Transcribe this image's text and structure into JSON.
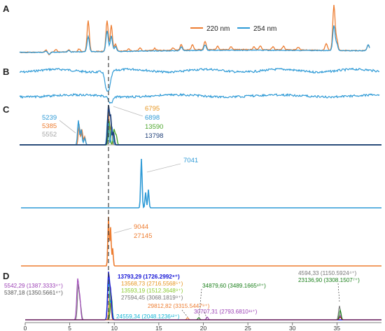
{
  "colors": {
    "orange": "#ED7D31",
    "blue": "#2E9AD6",
    "navy": "#1F3F78",
    "gray": "#A6A6A6",
    "green": "#4EA72E",
    "darkgreen": "#1A7F1A",
    "purple": "#9B3FB5",
    "brightblue": "#1414D6",
    "lime": "#8ACB2E",
    "cyan": "#12B5D6",
    "darkred": "#8B1A1A"
  },
  "chart_data": {
    "type": "line",
    "panels": {
      "A": {
        "label": "A",
        "legend": [
          {
            "name": "220 nm",
            "color": "#ED7D31"
          },
          {
            "name": "254 nm",
            "color": "#2E9AD6"
          }
        ]
      },
      "B": {
        "label": "B"
      },
      "C": {
        "label": "C",
        "group1_left": [
          {
            "text": "5239",
            "color": "#2E9AD6"
          },
          {
            "text": "5385",
            "color": "#ED7D31"
          },
          {
            "text": "5552",
            "color": "#A6A6A6"
          }
        ],
        "group1_right": [
          {
            "text": "6795",
            "color": "#E6951F"
          },
          {
            "text": "6898",
            "color": "#2E9AD6"
          },
          {
            "text": "13590",
            "color": "#4EA72E"
          },
          {
            "text": "13798",
            "color": "#1F3F78"
          }
        ],
        "group2": [
          {
            "text": "7041",
            "color": "#2E9AD6"
          }
        ],
        "group3": [
          {
            "text": "9044",
            "color": "#ED7D31"
          },
          {
            "text": "27145",
            "color": "#ED7D31"
          }
        ]
      },
      "D": {
        "label": "D",
        "x_axis": {
          "min": 0,
          "max": 40,
          "ticks": [
            "0",
            "5",
            "10",
            "15",
            "20",
            "25",
            "30",
            "35"
          ]
        },
        "peaks": [
          {
            "text": "5542,29 (1387.3333⁴⁺)",
            "x": 6.6,
            "color": "#9B3FB5"
          },
          {
            "text": "5387,18 (1350.5661⁴⁺)",
            "x": 6.6,
            "color": "#555555"
          },
          {
            "text": "13793,29 (1726.2992⁸⁺)",
            "x": 10.1,
            "color": "#1414D6"
          },
          {
            "text": "13568,73 (2716.5568⁵⁺)",
            "x": 10.1,
            "color": "#E6951F"
          },
          {
            "text": "13593,19 (1512.3648⁹⁺)",
            "x": 10.1,
            "color": "#8ACB2E"
          },
          {
            "text": "27594,45 (3068.1819⁹⁺)",
            "x": 10.1,
            "color": "#777777"
          },
          {
            "text": "29812,82 (3315.5447⁹⁺)",
            "x": 18.2,
            "color": "#ED7D31"
          },
          {
            "text": "24559,34 (2048.1236¹²⁺)",
            "x": 10.2,
            "color": "#12B5D6"
          },
          {
            "text": "34879,60 (3489.1665¹⁰⁺)",
            "x": 20.3,
            "color": "#1A7F1A"
          },
          {
            "text": "30707,31 (2793.6810¹¹⁺)",
            "x": 20.6,
            "color": "#9B3FB5"
          },
          {
            "text": "4594,33 (1150.5924⁴⁺)",
            "x": 34.7,
            "color": "#777777"
          },
          {
            "text": "23136,90 (3308.1507⁷⁺)",
            "x": 34.8,
            "color": "#1A7F1A"
          }
        ]
      }
    }
  }
}
